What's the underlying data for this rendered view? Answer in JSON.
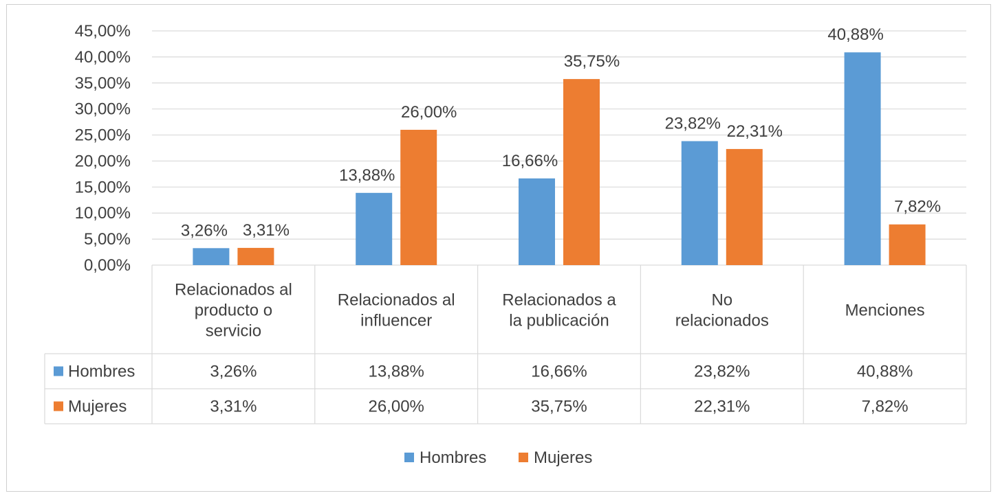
{
  "chart_data": {
    "type": "bar",
    "categories": [
      [
        "Relacionados al",
        "producto o",
        "servicio"
      ],
      [
        "Relacionados al",
        "influencer"
      ],
      [
        "Relacionados a",
        "la publicación"
      ],
      [
        "No",
        "relacionados"
      ],
      [
        "Menciones"
      ]
    ],
    "series": [
      {
        "name": "Hombres",
        "color": "#5b9bd5",
        "values": [
          3.26,
          13.88,
          16.66,
          23.82,
          40.88
        ],
        "labels": [
          "3,26%",
          "13,88%",
          "16,66%",
          "23,82%",
          "40,88%"
        ]
      },
      {
        "name": "Mujeres",
        "color": "#ed7d31",
        "values": [
          3.31,
          26.0,
          35.75,
          22.31,
          7.82
        ],
        "labels": [
          "3,31%",
          "26,00%",
          "35,75%",
          "22,31%",
          "7,82%"
        ]
      }
    ],
    "ylim": [
      0,
      45
    ],
    "yticks": [
      {
        "value": 45,
        "label": "45,00%"
      },
      {
        "value": 40,
        "label": "40,00%"
      },
      {
        "value": 35,
        "label": "35,00%"
      },
      {
        "value": 30,
        "label": "30,00%"
      },
      {
        "value": 25,
        "label": "25,00%"
      },
      {
        "value": 20,
        "label": "20,00%"
      },
      {
        "value": 15,
        "label": "15,00%"
      },
      {
        "value": 10,
        "label": "10,00%"
      },
      {
        "value": 5,
        "label": "5,00%"
      },
      {
        "value": 0,
        "label": "0,00%"
      }
    ],
    "grid": true,
    "data_table": true,
    "legend": {
      "position": "bottom",
      "entries": [
        "Hombres",
        "Mujeres"
      ]
    }
  }
}
